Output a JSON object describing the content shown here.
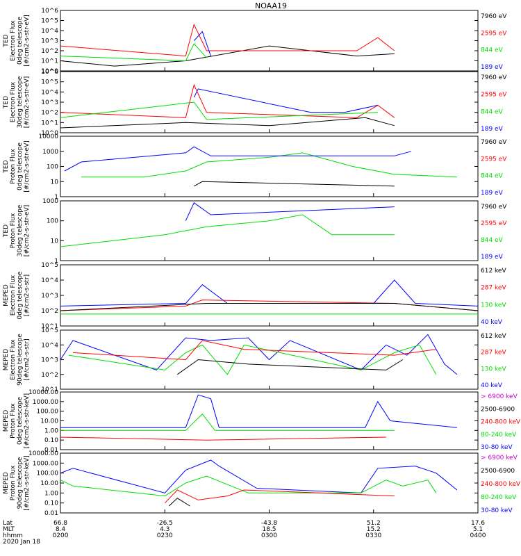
{
  "title": "NOAA19",
  "footer": {
    "row_labels": [
      "Lat",
      "MLT",
      "hhmm"
    ],
    "date": "2020 Jan 18",
    "ticks": [
      {
        "lat": "66.8",
        "mlt": "8.4",
        "hhmm": "0200"
      },
      {
        "lat": "-26.5",
        "mlt": "4.3",
        "hhmm": "0230"
      },
      {
        "lat": "-43.8",
        "mlt": "18.5",
        "hhmm": "0300"
      },
      {
        "lat": "51.2",
        "mlt": "15.2",
        "hhmm": "0330"
      },
      {
        "lat": "17.6",
        "mlt": "5.1",
        "hhmm": "0400"
      }
    ]
  },
  "colors": {
    "black": "#000000",
    "red": "#ff0000",
    "green": "#00dd00",
    "blue": "#0000ff",
    "magenta": "#cc00cc"
  },
  "chart_data": [
    {
      "type": "line",
      "ylabel": [
        "TED",
        "Electron Flux",
        "0deg telescope",
        "[#/cm2-s-str-eV]"
      ],
      "yscale": "log",
      "ylim": [
        1,
        1000000
      ],
      "yticks": [
        "10^0",
        "10^1",
        "10^2",
        "10^3",
        "10^4",
        "10^5",
        "10^6"
      ],
      "legend": [
        {
          "label": "7960 eV",
          "color": "#000000"
        },
        {
          "label": "2595 eV",
          "color": "#ff0000"
        },
        {
          "label": "844 eV",
          "color": "#00dd00"
        },
        {
          "label": "189 eV",
          "color": "#0000ff"
        }
      ],
      "series": [
        {
          "color": "#000000",
          "x": [
            0,
            0.13,
            0.3,
            0.5,
            0.71,
            0.8
          ],
          "y": [
            10,
            3,
            10,
            300,
            30,
            50
          ]
        },
        {
          "color": "#ff0000",
          "x": [
            0,
            0.3,
            0.32,
            0.35,
            0.71,
            0.76,
            0.8
          ],
          "y": [
            300,
            30,
            40000,
            100,
            100,
            2000,
            100
          ]
        },
        {
          "color": "#00dd00",
          "x": [
            0,
            0.3,
            0.32,
            0.35
          ],
          "y": [
            30,
            10,
            500,
            20
          ]
        },
        {
          "color": "#0000ff",
          "x": [
            0.32,
            0.34,
            0.36
          ],
          "y": [
            1000,
            8000,
            30
          ]
        }
      ]
    },
    {
      "type": "line",
      "ylabel": [
        "TED",
        "Electron Flux",
        "30deg telescope",
        "[#/cm2-s-str-eV]"
      ],
      "yscale": "log",
      "ylim": [
        1,
        1000000
      ],
      "yticks": [
        "10^0",
        "10^1",
        "10^2",
        "10^3",
        "10^4",
        "10^5",
        "10^6"
      ],
      "legend": [
        {
          "label": "7960 eV",
          "color": "#000000"
        },
        {
          "label": "2595 eV",
          "color": "#ff0000"
        },
        {
          "label": "844 eV",
          "color": "#00dd00"
        },
        {
          "label": "189 eV",
          "color": "#0000ff"
        }
      ],
      "series": [
        {
          "color": "#000000",
          "x": [
            0,
            0.3,
            0.5,
            0.73,
            0.8
          ],
          "y": [
            3,
            10,
            5,
            30,
            5
          ]
        },
        {
          "color": "#ff0000",
          "x": [
            0,
            0.3,
            0.32,
            0.35,
            0.71,
            0.76,
            0.8
          ],
          "y": [
            100,
            30,
            50000,
            100,
            30,
            500,
            30
          ]
        },
        {
          "color": "#00dd00",
          "x": [
            0,
            0.32,
            0.35,
            0.76
          ],
          "y": [
            30,
            1000,
            20,
            100
          ]
        },
        {
          "color": "#0000ff",
          "x": [
            0.32,
            0.33,
            0.6,
            0.68,
            0.76
          ],
          "y": [
            3000,
            20000,
            100,
            100,
            500
          ]
        }
      ]
    },
    {
      "type": "line",
      "ylabel": [
        "TED",
        "Proton Flux",
        "0deg telescope",
        "[#/cm2-s-str-eV]"
      ],
      "yscale": "log",
      "ylim": [
        1,
        10000
      ],
      "yticks": [
        "1",
        "10",
        "100",
        "1000",
        "10000"
      ],
      "legend": [
        {
          "label": "7960 eV",
          "color": "#000000"
        },
        {
          "label": "2595 eV",
          "color": "#ff0000"
        },
        {
          "label": "844 eV",
          "color": "#00dd00"
        },
        {
          "label": "189 eV",
          "color": "#0000ff"
        }
      ],
      "series": [
        {
          "color": "#00dd00",
          "x": [
            0.05,
            0.2,
            0.3,
            0.35,
            0.5,
            0.58,
            0.7,
            0.8,
            0.95
          ],
          "y": [
            20,
            20,
            50,
            200,
            400,
            800,
            100,
            30,
            20
          ]
        },
        {
          "color": "#0000ff",
          "x": [
            0.01,
            0.05,
            0.3,
            0.32,
            0.36,
            0.8,
            0.84
          ],
          "y": [
            50,
            200,
            800,
            2000,
            500,
            500,
            1000
          ]
        },
        {
          "color": "#000000",
          "x": [
            0.32,
            0.34,
            0.8
          ],
          "y": [
            5,
            10,
            5
          ]
        }
      ]
    },
    {
      "type": "line",
      "ylabel": [
        "TED",
        "Proton Flux",
        "30deg telescope",
        "[#/cm2-s-str-eV]"
      ],
      "yscale": "log",
      "ylim": [
        1,
        1000
      ],
      "yticks": [
        "1",
        "10",
        "100",
        "1000"
      ],
      "legend": [
        {
          "label": "7960 eV",
          "color": "#000000"
        },
        {
          "label": "2595 eV",
          "color": "#ff0000"
        },
        {
          "label": "844 eV",
          "color": "#00dd00"
        },
        {
          "label": "189 eV",
          "color": "#0000ff"
        }
      ],
      "series": [
        {
          "color": "#00dd00",
          "x": [
            0,
            0.25,
            0.35,
            0.5,
            0.58,
            0.65,
            0.8
          ],
          "y": [
            5,
            20,
            50,
            100,
            200,
            20,
            20
          ]
        },
        {
          "color": "#0000ff",
          "x": [
            0.3,
            0.32,
            0.36,
            0.8
          ],
          "y": [
            100,
            800,
            200,
            500
          ]
        }
      ]
    },
    {
      "type": "line",
      "ylabel": [
        "MEPED",
        "Electron Flux",
        "0deg telescope",
        "[#/cm2-s-str]"
      ],
      "yscale": "log",
      "ylim": [
        10,
        100000
      ],
      "yticks": [
        "10^1",
        "10^2",
        "10^3",
        "10^4",
        "10^5"
      ],
      "legend": [
        {
          "label": "612 keV",
          "color": "#000000"
        },
        {
          "label": "287 keV",
          "color": "#ff0000"
        },
        {
          "label": "130 keV",
          "color": "#00dd00"
        },
        {
          "label": "40 keV",
          "color": "#0000ff"
        }
      ],
      "series": [
        {
          "color": "#0000ff",
          "x": [
            0,
            0.3,
            0.34,
            0.4,
            0.75,
            0.8,
            0.85,
            1
          ],
          "y": [
            200,
            300,
            5000,
            300,
            300,
            10000,
            300,
            200
          ]
        },
        {
          "color": "#ff0000",
          "x": [
            0,
            0.3,
            0.34,
            0.8,
            1
          ],
          "y": [
            100,
            200,
            500,
            300,
            100
          ]
        },
        {
          "color": "#000000",
          "x": [
            0,
            0.35,
            0.8,
            1
          ],
          "y": [
            100,
            300,
            300,
            100
          ]
        },
        {
          "color": "#00dd00",
          "x": [
            0,
            1
          ],
          "y": [
            60,
            60
          ]
        }
      ]
    },
    {
      "type": "line",
      "ylabel": [
        "MEPED",
        "Electron Flux",
        "90deg telescope",
        "[#/cm2-s-str]"
      ],
      "yscale": "log",
      "ylim": [
        10,
        100000
      ],
      "yticks": [
        "10^1",
        "10^2",
        "10^3",
        "10^4",
        "10^5"
      ],
      "legend": [
        {
          "label": "612 keV",
          "color": "#000000"
        },
        {
          "label": "287 keV",
          "color": "#ff0000"
        },
        {
          "label": "130 keV",
          "color": "#00dd00"
        },
        {
          "label": "40 keV",
          "color": "#0000ff"
        }
      ],
      "series": [
        {
          "color": "#0000ff",
          "x": [
            0,
            0.03,
            0.23,
            0.3,
            0.36,
            0.45,
            0.5,
            0.55,
            0.72,
            0.78,
            0.83,
            0.88,
            0.92,
            0.95
          ],
          "y": [
            1000,
            20000,
            200,
            30000,
            20000,
            30000,
            1000,
            20000,
            200,
            10000,
            2000,
            50000,
            500,
            100
          ]
        },
        {
          "color": "#00dd00",
          "x": [
            0.02,
            0.25,
            0.3,
            0.34,
            0.4,
            0.44,
            0.72,
            0.8,
            0.86,
            0.9
          ],
          "y": [
            2000,
            200,
            3000,
            10000,
            100,
            10000,
            200,
            3000,
            10000,
            100
          ]
        },
        {
          "color": "#ff0000",
          "x": [
            0.03,
            0.3,
            0.34,
            0.44,
            0.8,
            0.9
          ],
          "y": [
            3000,
            1000,
            20000,
            5000,
            2000,
            5000
          ]
        },
        {
          "color": "#000000",
          "x": [
            0.28,
            0.33,
            0.45,
            0.78,
            0.82
          ],
          "y": [
            100,
            1000,
            500,
            200,
            1000
          ]
        }
      ]
    },
    {
      "type": "line",
      "ylabel": [
        "MEPED",
        "Proton Flux",
        "0deg telescope",
        "[#/cm2-s-str-keV]"
      ],
      "yscale": "log",
      "ylim": [
        0.01,
        10000
      ],
      "yticks": [
        "0.01",
        "0.10",
        "1.00",
        "10.00",
        "100.00",
        "1000.00",
        "10000.00"
      ],
      "legend": [
        {
          "label": "> 6900 keV",
          "color": "#cc00cc"
        },
        {
          "label": "2500-6900",
          "color": "#000000"
        },
        {
          "label": "240-800 keV",
          "color": "#ff0000"
        },
        {
          "label": "80-240 keV",
          "color": "#00dd00"
        },
        {
          "label": "30-80 keV",
          "color": "#0000ff"
        }
      ],
      "series": [
        {
          "color": "#0000ff",
          "x": [
            0,
            0.3,
            0.33,
            0.36,
            0.38,
            0.73,
            0.76,
            0.79,
            0.95
          ],
          "y": [
            2,
            2,
            5000,
            2000,
            2,
            2,
            1000,
            10,
            2
          ]
        },
        {
          "color": "#00dd00",
          "x": [
            0,
            0.3,
            0.34,
            0.37,
            0.76,
            0.8
          ],
          "y": [
            1,
            1,
            50,
            1,
            1,
            1
          ]
        },
        {
          "color": "#ff0000",
          "x": [
            0,
            0.35,
            0.78
          ],
          "y": [
            0.2,
            0.1,
            0.2
          ]
        }
      ]
    },
    {
      "type": "line",
      "ylabel": [
        "MEPED",
        "Proton Flux",
        "90deg telescope",
        "[#/cm2-s-str-keV]"
      ],
      "yscale": "log",
      "ylim": [
        0.01,
        10000
      ],
      "yticks": [
        "0.01",
        "0.10",
        "1.00",
        "10.00",
        "100.00",
        "1000.00",
        "10000.00"
      ],
      "legend": [
        {
          "label": "> 6900 keV",
          "color": "#cc00cc"
        },
        {
          "label": "2500-6900",
          "color": "#000000"
        },
        {
          "label": "240-800 keV",
          "color": "#ff0000"
        },
        {
          "label": "80-240 keV",
          "color": "#00dd00"
        },
        {
          "label": "30-80 keV",
          "color": "#0000ff"
        }
      ],
      "series": [
        {
          "color": "#0000ff",
          "x": [
            0,
            0.03,
            0.25,
            0.3,
            0.36,
            0.38,
            0.47,
            0.72,
            0.76,
            0.85,
            0.9,
            0.95
          ],
          "y": [
            100,
            300,
            1,
            200,
            2000,
            500,
            3,
            1,
            300,
            500,
            100,
            2
          ]
        },
        {
          "color": "#00dd00",
          "x": [
            0,
            0.03,
            0.25,
            0.3,
            0.35,
            0.45,
            0.72,
            0.78,
            0.82,
            0.88,
            0.9
          ],
          "y": [
            20,
            5,
            0.5,
            10,
            50,
            1,
            1,
            20,
            5,
            20,
            1
          ]
        },
        {
          "color": "#ff0000",
          "x": [
            0.25,
            0.28,
            0.33,
            0.4,
            0.44,
            0.8
          ],
          "y": [
            0.1,
            2,
            0.2,
            0.5,
            2,
            0.5
          ]
        },
        {
          "color": "#000000",
          "x": [
            0.26,
            0.28,
            0.31
          ],
          "y": [
            0.05,
            0.3,
            0.05
          ]
        }
      ]
    }
  ]
}
